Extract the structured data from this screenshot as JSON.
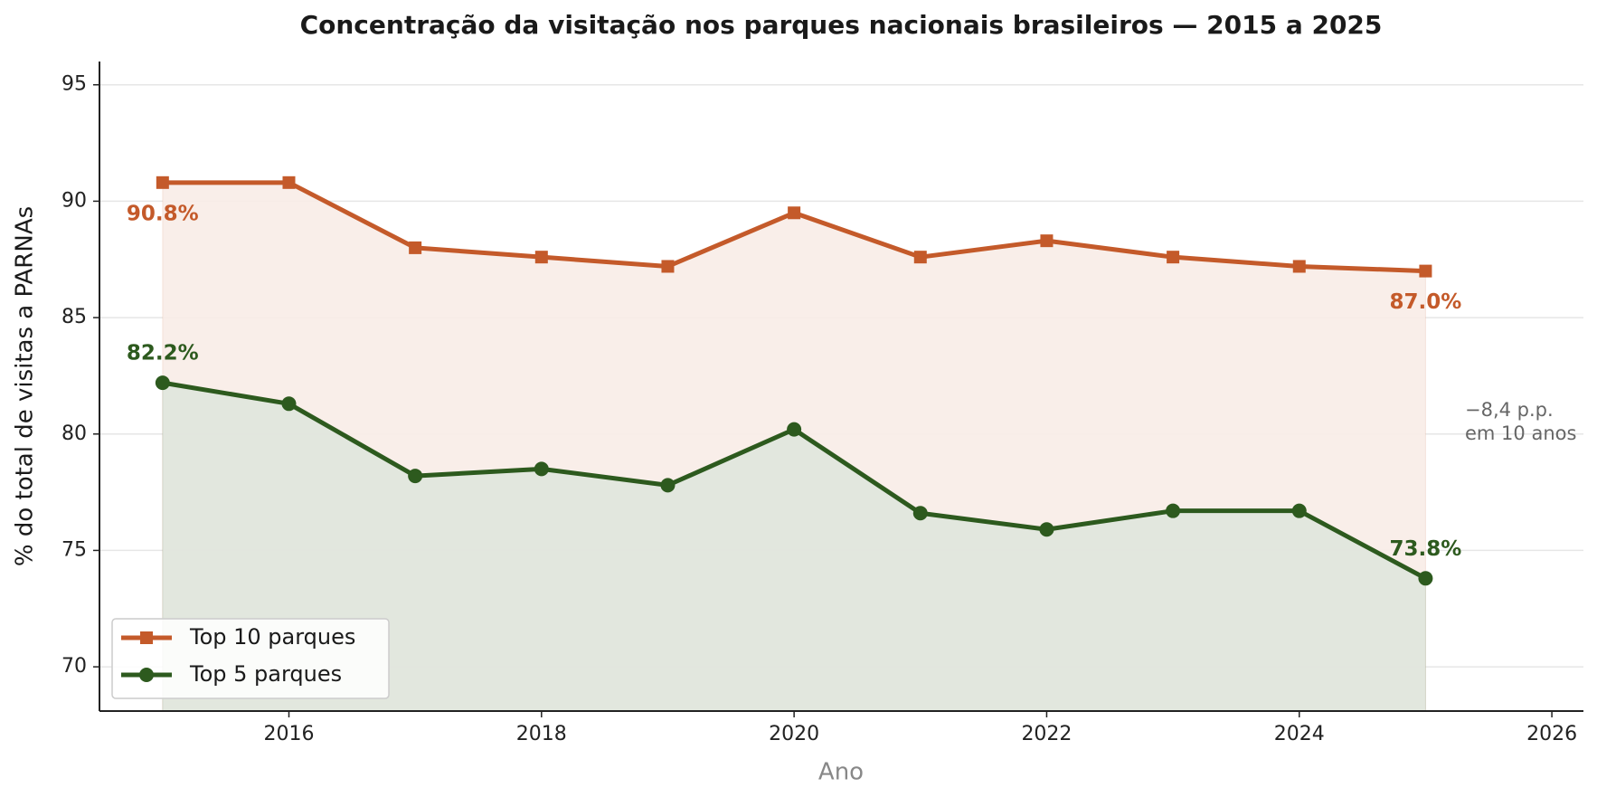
{
  "chart_data": {
    "type": "line",
    "title": "Concentração da visitação nos parques nacionais brasileiros — 2015 a 2025",
    "x_label": "Ano",
    "y_label": "% do total de visitas a PARNAs",
    "x": [
      2015,
      2016,
      2017,
      2018,
      2019,
      2020,
      2021,
      2022,
      2023,
      2024,
      2025
    ],
    "series": [
      {
        "name": "Top 10 parques",
        "color": "#c45a2a",
        "marker": "square",
        "fill": "#f8ece7",
        "values": [
          90.8,
          90.8,
          88.0,
          87.6,
          87.2,
          89.5,
          87.6,
          88.3,
          87.6,
          87.2,
          87.0
        ],
        "value_labels": [
          "90.8%",
          null,
          null,
          null,
          null,
          null,
          null,
          null,
          null,
          null,
          "87.0%"
        ]
      },
      {
        "name": "Top 5 parques",
        "color": "#2d5a1e",
        "marker": "circle",
        "fill": "#dfe6dd",
        "values": [
          82.2,
          81.3,
          78.2,
          78.5,
          77.8,
          80.2,
          76.6,
          75.9,
          76.7,
          76.7,
          73.8
        ],
        "value_labels": [
          "82.2%",
          null,
          null,
          null,
          null,
          null,
          null,
          null,
          null,
          null,
          "73.8%"
        ]
      }
    ],
    "annotation": [
      "−8,4 p.p.",
      "em 10 anos"
    ],
    "xlim": [
      2014.5,
      2026.25
    ],
    "ylim": [
      68.1,
      96
    ],
    "xticks": [
      2016,
      2018,
      2020,
      2022,
      2024,
      2026
    ],
    "yticks": [
      70,
      75,
      80,
      85,
      90,
      95
    ],
    "grid": true,
    "legend": "lower left"
  }
}
